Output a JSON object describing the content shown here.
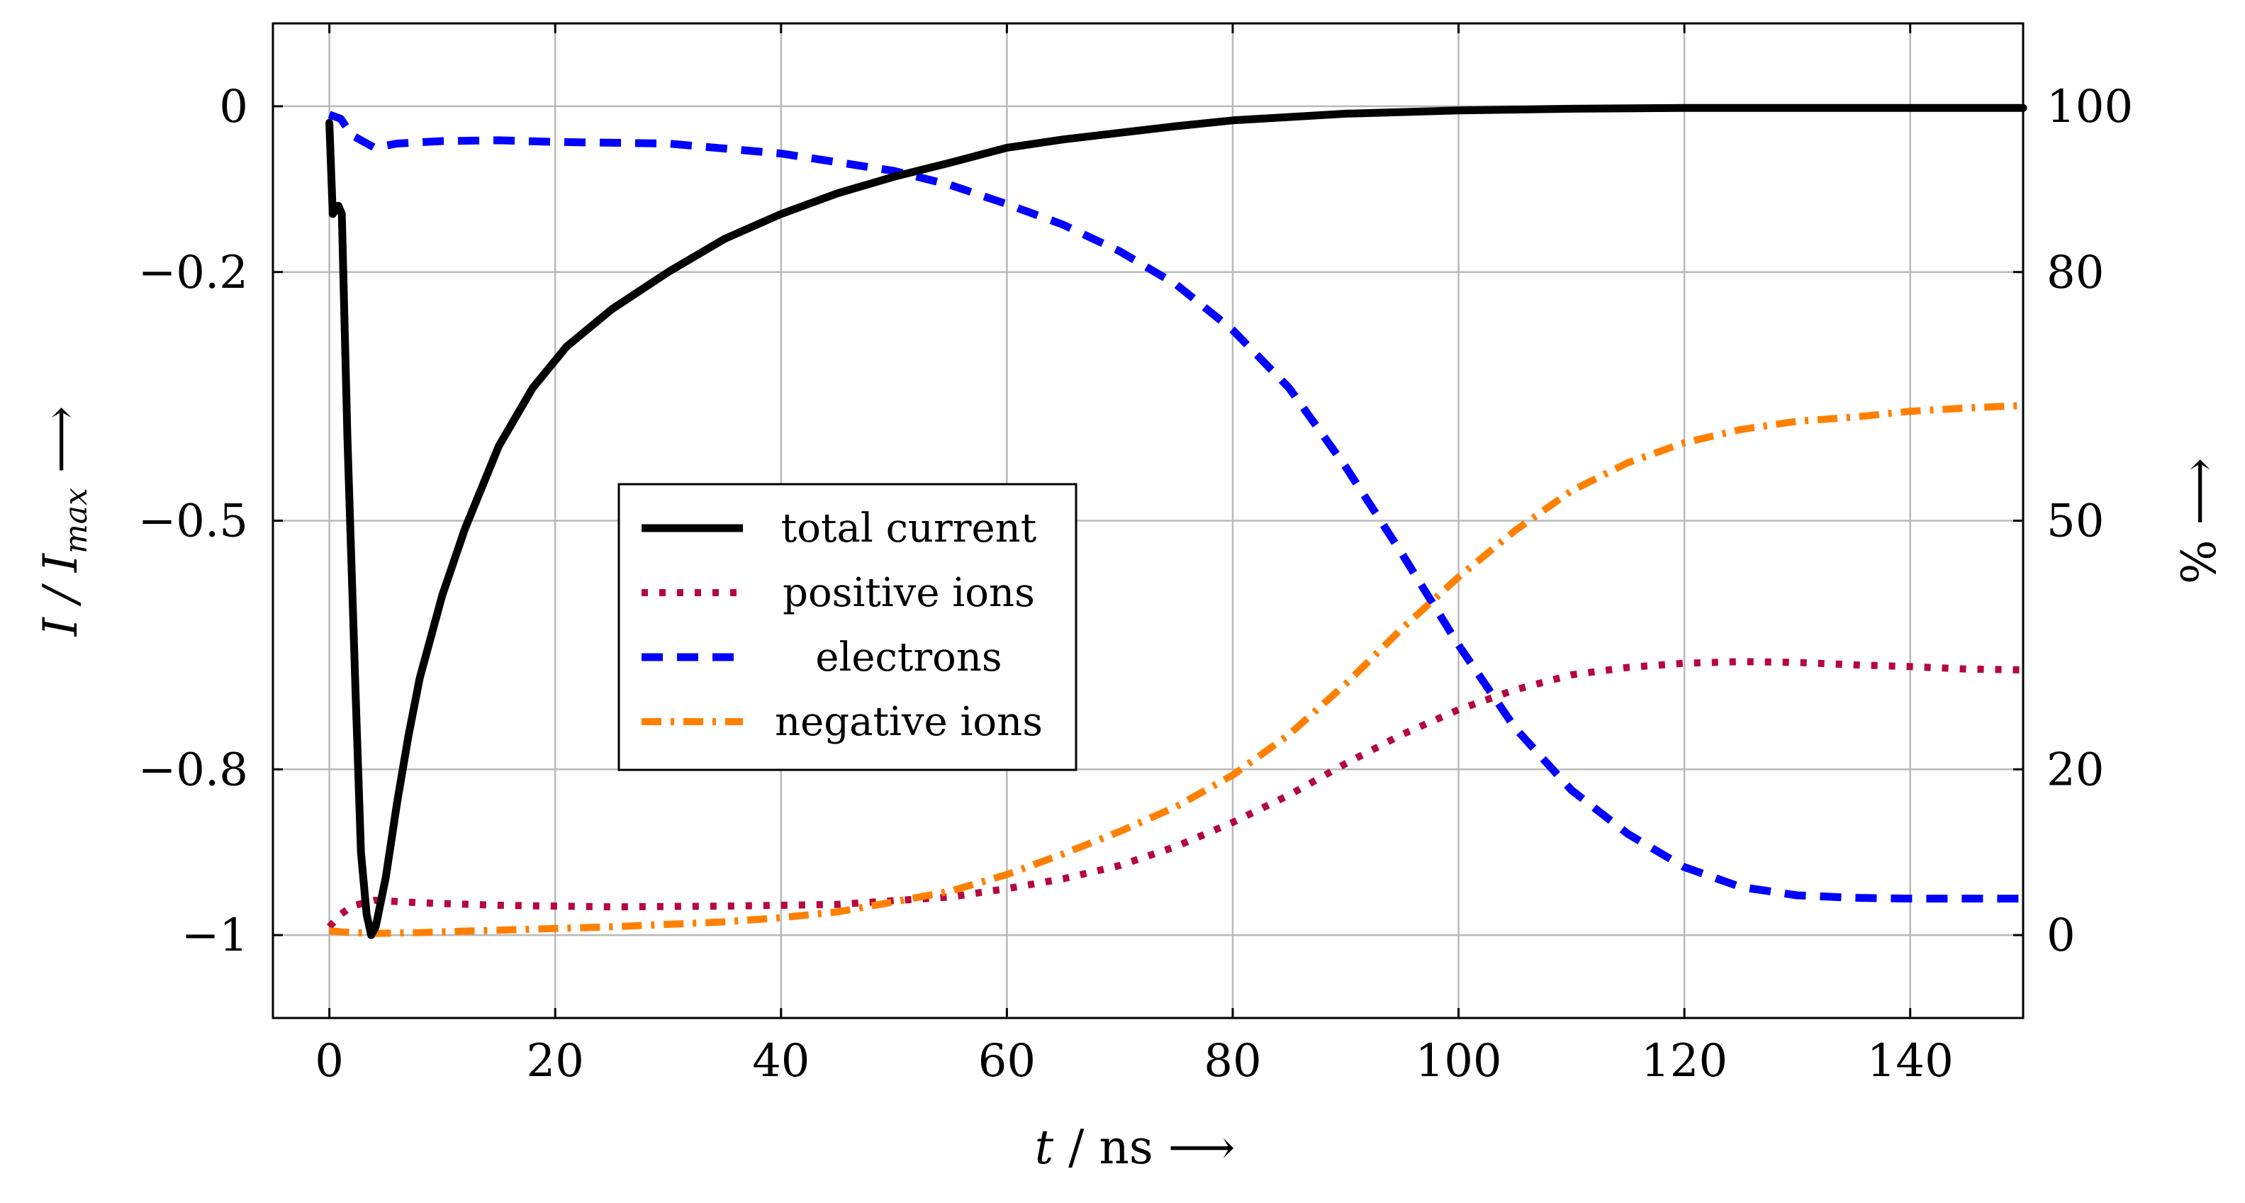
{
  "chart_data": {
    "type": "line",
    "x_label": "t / ns ⟶",
    "x_label_parts": {
      "var": "t",
      "unit": " / ns ⟶"
    },
    "y_left_label": "I / Imax ⟶",
    "y_left_label_parts": {
      "var": "I / I",
      "sub": "max",
      "arrow": " ⟶"
    },
    "y_right_label": "% ⟶",
    "x_range": [
      -5,
      150
    ],
    "y_left_range": [
      -1.1,
      0.1
    ],
    "y_right_range": [
      -10,
      110
    ],
    "grid": true,
    "legend_position": "center-left",
    "x_ticks": [
      {
        "value": 0,
        "label": "0"
      },
      {
        "value": 20,
        "label": "20"
      },
      {
        "value": 40,
        "label": "40"
      },
      {
        "value": 60,
        "label": "60"
      },
      {
        "value": 80,
        "label": "80"
      },
      {
        "value": 100,
        "label": "100"
      },
      {
        "value": 120,
        "label": "120"
      },
      {
        "value": 140,
        "label": "140"
      }
    ],
    "y_left_ticks": [
      {
        "value": 0,
        "label": "0"
      },
      {
        "value": -0.2,
        "label": "−0.2"
      },
      {
        "value": -0.5,
        "label": "−0.5"
      },
      {
        "value": -0.8,
        "label": "−0.8"
      },
      {
        "value": -1,
        "label": "−1"
      }
    ],
    "y_right_ticks": [
      {
        "value": 100,
        "label": "100"
      },
      {
        "value": 80,
        "label": "80"
      },
      {
        "value": 50,
        "label": "50"
      },
      {
        "value": 20,
        "label": "20"
      },
      {
        "value": 0,
        "label": "0"
      }
    ],
    "series": [
      {
        "name": "total current",
        "axis": "left",
        "color": "#000000",
        "style": "solid",
        "points": [
          [
            0,
            -0.02
          ],
          [
            0.3,
            -0.13
          ],
          [
            0.8,
            -0.12
          ],
          [
            1.1,
            -0.13
          ],
          [
            1.6,
            -0.4
          ],
          [
            2.3,
            -0.7
          ],
          [
            2.8,
            -0.9
          ],
          [
            3.3,
            -0.975
          ],
          [
            3.7,
            -1.0
          ],
          [
            4.1,
            -0.99
          ],
          [
            5,
            -0.93
          ],
          [
            6,
            -0.84
          ],
          [
            7,
            -0.76
          ],
          [
            8,
            -0.69
          ],
          [
            10,
            -0.59
          ],
          [
            12,
            -0.51
          ],
          [
            15,
            -0.41
          ],
          [
            18,
            -0.34
          ],
          [
            21,
            -0.29
          ],
          [
            25,
            -0.245
          ],
          [
            30,
            -0.2
          ],
          [
            35,
            -0.16
          ],
          [
            40,
            -0.13
          ],
          [
            45,
            -0.105
          ],
          [
            50,
            -0.085
          ],
          [
            55,
            -0.068
          ],
          [
            60,
            -0.05
          ],
          [
            65,
            -0.04
          ],
          [
            70,
            -0.032
          ],
          [
            75,
            -0.024
          ],
          [
            80,
            -0.017
          ],
          [
            90,
            -0.009
          ],
          [
            100,
            -0.005
          ],
          [
            110,
            -0.003
          ],
          [
            120,
            -0.002
          ],
          [
            130,
            -0.002
          ],
          [
            140,
            -0.002
          ],
          [
            150,
            -0.002
          ]
        ]
      },
      {
        "name": "positive ions",
        "axis": "right",
        "color": "#b5073f",
        "style": "dotted",
        "points": [
          [
            0,
            1
          ],
          [
            1,
            2.5
          ],
          [
            2,
            3.5
          ],
          [
            4,
            4.2
          ],
          [
            8,
            3.9
          ],
          [
            15,
            3.6
          ],
          [
            25,
            3.4
          ],
          [
            35,
            3.5
          ],
          [
            45,
            3.7
          ],
          [
            55,
            4.6
          ],
          [
            60,
            5.6
          ],
          [
            65,
            6.8
          ],
          [
            70,
            8.4
          ],
          [
            75,
            10.7
          ],
          [
            80,
            13.6
          ],
          [
            85,
            16.9
          ],
          [
            90,
            20.7
          ],
          [
            95,
            24.2
          ],
          [
            100,
            27.2
          ],
          [
            105,
            29.6
          ],
          [
            110,
            31.4
          ],
          [
            115,
            32.3
          ],
          [
            120,
            32.8
          ],
          [
            125,
            33.0
          ],
          [
            130,
            32.9
          ],
          [
            135,
            32.6
          ],
          [
            140,
            32.4
          ],
          [
            145,
            32.1
          ],
          [
            150,
            32.0
          ]
        ]
      },
      {
        "name": "electrons",
        "axis": "right",
        "color": "#0000ff",
        "style": "dashed",
        "points": [
          [
            0,
            99
          ],
          [
            1,
            98.5
          ],
          [
            2,
            96.5
          ],
          [
            4,
            95
          ],
          [
            6,
            95.5
          ],
          [
            10,
            95.8
          ],
          [
            15,
            95.9
          ],
          [
            20,
            95.7
          ],
          [
            30,
            95.5
          ],
          [
            40,
            94.3
          ],
          [
            50,
            92.2
          ],
          [
            55,
            90.5
          ],
          [
            60,
            88.2
          ],
          [
            65,
            85.7
          ],
          [
            70,
            82.5
          ],
          [
            75,
            78.5
          ],
          [
            80,
            73.0
          ],
          [
            85,
            66.0
          ],
          [
            90,
            56.5
          ],
          [
            95,
            46.0
          ],
          [
            100,
            35.0
          ],
          [
            105,
            25.0
          ],
          [
            110,
            17.5
          ],
          [
            115,
            12.2
          ],
          [
            120,
            8.2
          ],
          [
            125,
            5.8
          ],
          [
            130,
            4.8
          ],
          [
            135,
            4.5
          ],
          [
            140,
            4.4
          ],
          [
            145,
            4.4
          ],
          [
            150,
            4.4
          ]
        ]
      },
      {
        "name": "negative ions",
        "axis": "right",
        "color": "#ff8000",
        "style": "dashdot",
        "points": [
          [
            0,
            0.5
          ],
          [
            2,
            0.3
          ],
          [
            4,
            0.2
          ],
          [
            8,
            0.3
          ],
          [
            15,
            0.6
          ],
          [
            25,
            1.0
          ],
          [
            35,
            1.6
          ],
          [
            40,
            2.1
          ],
          [
            45,
            2.8
          ],
          [
            50,
            4.0
          ],
          [
            55,
            5.3
          ],
          [
            60,
            7.3
          ],
          [
            65,
            9.8
          ],
          [
            70,
            12.5
          ],
          [
            75,
            15.5
          ],
          [
            80,
            19.3
          ],
          [
            85,
            24.2
          ],
          [
            90,
            30.3
          ],
          [
            95,
            37.0
          ],
          [
            100,
            43.2
          ],
          [
            105,
            48.8
          ],
          [
            110,
            53.6
          ],
          [
            115,
            57.0
          ],
          [
            120,
            59.4
          ],
          [
            125,
            61.0
          ],
          [
            130,
            62.0
          ],
          [
            135,
            62.5
          ],
          [
            140,
            63.2
          ],
          [
            145,
            63.6
          ],
          [
            150,
            63.9
          ]
        ]
      }
    ]
  }
}
